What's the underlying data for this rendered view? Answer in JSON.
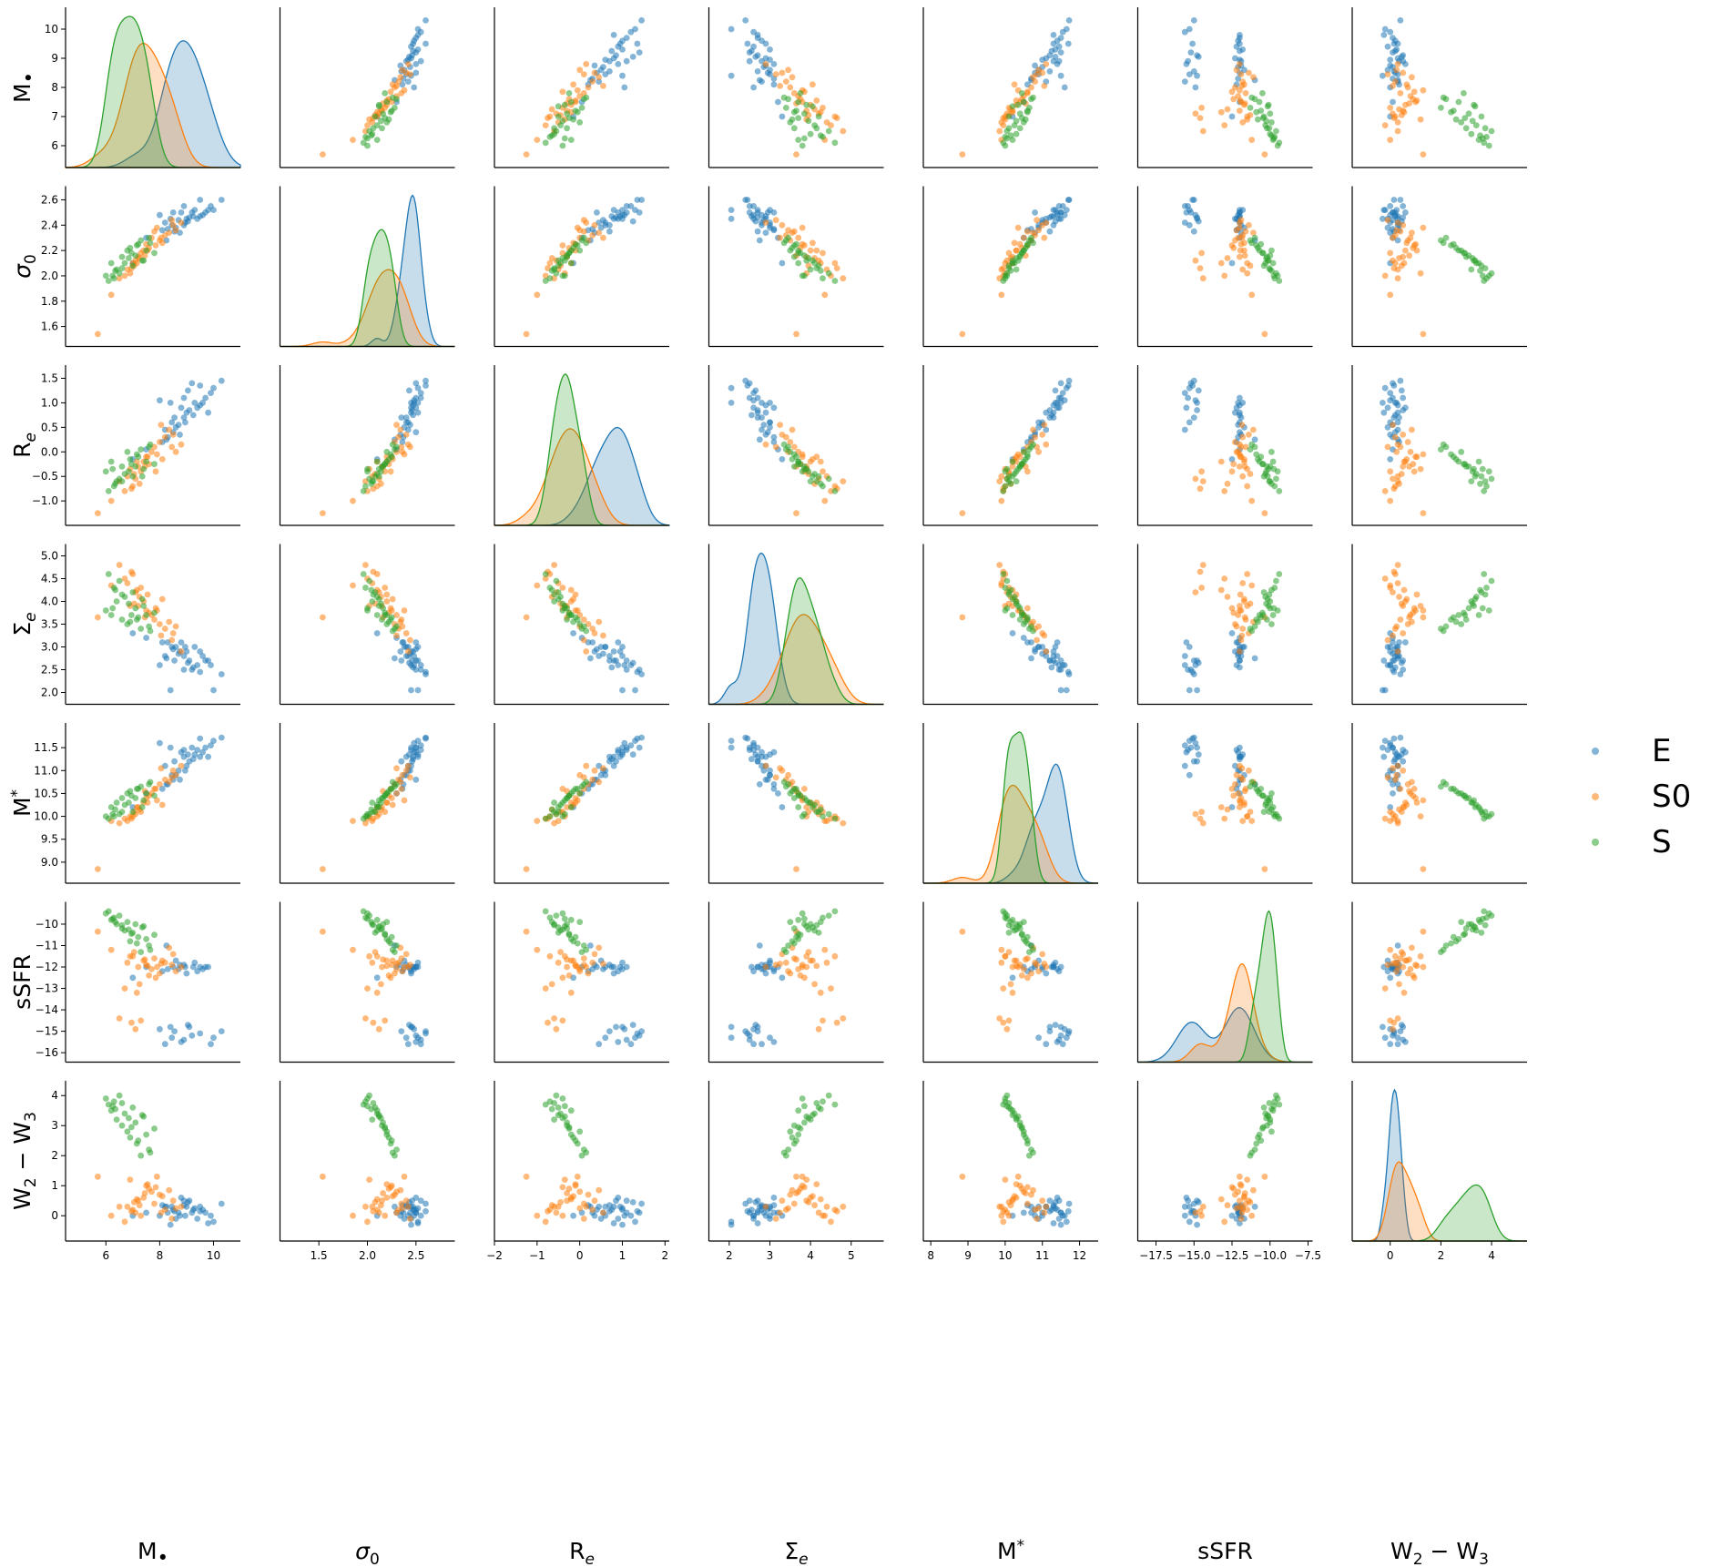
{
  "chart_data": {
    "type": "scatter",
    "title": "",
    "plot_kind": "pairplot (scatter off-diagonal, KDE density on diagonal)",
    "variables": [
      {
        "key": "mbh",
        "label": "M•",
        "lim": [
          4.5,
          11
        ],
        "ticks": [
          6,
          8,
          10
        ]
      },
      {
        "key": "sigma0",
        "label": "σ0",
        "lim": [
          1.1,
          2.9
        ],
        "ticks": [
          1.5,
          2.0,
          2.5
        ]
      },
      {
        "key": "re",
        "label": "Re",
        "lim": [
          -2.0,
          2.1
        ],
        "ticks": [
          -2,
          -1,
          0,
          1,
          2
        ]
      },
      {
        "key": "sigma_e",
        "label": "Σe",
        "lim": [
          1.5,
          5.8
        ],
        "ticks": [
          2,
          3,
          4,
          5
        ]
      },
      {
        "key": "mstar",
        "label": "M*",
        "lim": [
          7.8,
          12.5
        ],
        "ticks": [
          8,
          9,
          10,
          11,
          12
        ]
      },
      {
        "key": "ssfr",
        "label": "sSFR",
        "lim": [
          -18.7,
          -7.2
        ],
        "ticks": [
          -17.5,
          -15.0,
          -12.5,
          -10.0,
          -7.5
        ]
      },
      {
        "key": "w2w3",
        "label": "W2 − W3",
        "lim": [
          -1.5,
          5.4
        ],
        "ticks": [
          0,
          2,
          4
        ]
      }
    ],
    "tick_labels": {
      "mbh": [
        "6",
        "8",
        "10"
      ],
      "sigma0": [
        "1.5",
        "2.0",
        "2.5"
      ],
      "re": [
        "−2",
        "−1",
        "0",
        "1",
        "2"
      ],
      "sigma_e": [
        "2",
        "3",
        "4",
        "5"
      ],
      "mstar": [
        "8",
        "9",
        "10",
        "11",
        "12"
      ],
      "ssfr": [
        "−17.5",
        "−15.0",
        "−12.5",
        "−10.0",
        "−7.5"
      ],
      "w2w3": [
        "0",
        "2",
        "4"
      ]
    },
    "row_limits": {
      "mbh": [
        5.5,
        10.5
      ],
      "sigma0": [
        1.5,
        2.65
      ],
      "re": [
        -1.35,
        1.62
      ],
      "sigma_e": [
        1.9,
        5.1
      ],
      "mstar": [
        8.7,
        11.88
      ],
      "ssfr": [
        -16.1,
        -9.3
      ],
      "w2w3": [
        -0.6,
        4.25
      ]
    },
    "row_ticks": {
      "mbh": [
        6,
        7,
        8,
        9,
        10
      ],
      "sigma0": [
        1.6,
        1.8,
        2.0,
        2.2,
        2.4,
        2.6
      ],
      "re": [
        -1.0,
        -0.5,
        0.0,
        0.5,
        1.0,
        1.5
      ],
      "sigma_e": [
        2.0,
        2.5,
        3.0,
        3.5,
        4.0,
        4.5,
        5.0
      ],
      "mstar": [
        9.0,
        9.5,
        10.0,
        10.5,
        11.0,
        11.5
      ],
      "ssfr": [
        -16,
        -15,
        -14,
        -13,
        -12,
        -11,
        -10
      ],
      "w2w3": [
        0,
        1,
        2,
        3,
        4
      ]
    },
    "row_tick_labels": {
      "mbh": [
        "6",
        "7",
        "8",
        "9",
        "10"
      ],
      "sigma0": [
        "1.6",
        "1.8",
        "2.0",
        "2.2",
        "2.4",
        "2.6"
      ],
      "re": [
        "−1.0",
        "−0.5",
        "0.0",
        "0.5",
        "1.0",
        "1.5"
      ],
      "sigma_e": [
        "2.0",
        "2.5",
        "3.0",
        "3.5",
        "4.0",
        "4.5",
        "5.0"
      ],
      "mstar": [
        "9.0",
        "9.5",
        "10.0",
        "10.5",
        "11.0",
        "11.5"
      ],
      "ssfr": [
        "−16",
        "−15",
        "−14",
        "−13",
        "−12",
        "−11",
        "−10"
      ],
      "w2w3": [
        "0",
        "1",
        "2",
        "3",
        "4"
      ]
    },
    "series": [
      {
        "name": "E",
        "color": "#1f77b4",
        "points": [
          [
            10.3,
            2.6,
            1.45,
            2.4,
            11.72,
            -15.0,
            0.4
          ],
          [
            10.0,
            2.52,
            1.3,
            2.05,
            11.65,
            -15.3,
            -0.2
          ],
          [
            9.9,
            2.55,
            1.2,
            2.6,
            11.55,
            -15.6,
            0.0
          ],
          [
            9.7,
            2.5,
            1.1,
            2.7,
            11.5,
            -12.0,
            0.1
          ],
          [
            9.6,
            2.48,
            1.0,
            2.8,
            11.4,
            -12.1,
            0.2
          ],
          [
            9.5,
            2.47,
            0.95,
            2.9,
            11.3,
            -12.0,
            0.3
          ],
          [
            9.4,
            2.45,
            0.9,
            2.6,
            11.45,
            -12.2,
            -0.1
          ],
          [
            9.3,
            2.52,
            1.0,
            3.0,
            11.35,
            -11.8,
            0.25
          ],
          [
            9.2,
            2.5,
            1.4,
            2.5,
            11.5,
            -15.2,
            0.1
          ],
          [
            9.1,
            2.46,
            0.85,
            2.7,
            11.2,
            -14.8,
            0.5
          ],
          [
            9.0,
            2.45,
            0.8,
            2.9,
            11.1,
            -12.3,
            0.3
          ],
          [
            8.95,
            2.42,
            0.6,
            3.0,
            11.0,
            -12.0,
            0.0
          ],
          [
            8.9,
            2.4,
            0.7,
            2.8,
            11.3,
            -11.9,
            0.35
          ],
          [
            8.8,
            2.5,
            0.9,
            3.1,
            11.4,
            -15.5,
            0.6
          ],
          [
            8.7,
            2.44,
            0.55,
            2.85,
            11.0,
            -12.1,
            0.1
          ],
          [
            8.6,
            2.38,
            0.5,
            3.0,
            10.9,
            -11.7,
            -0.1
          ],
          [
            8.55,
            2.35,
            0.7,
            2.7,
            11.2,
            -15.0,
            0.15
          ],
          [
            8.5,
            2.5,
            0.4,
            2.95,
            10.8,
            -12.0,
            0.2
          ],
          [
            8.4,
            2.45,
            1.0,
            2.05,
            11.5,
            -14.8,
            -0.3
          ],
          [
            8.3,
            2.37,
            0.3,
            3.1,
            10.7,
            -12.1,
            0.1
          ],
          [
            8.2,
            2.42,
            0.45,
            2.8,
            11.1,
            -15.6,
            0.3
          ],
          [
            8.0,
            2.48,
            1.05,
            2.6,
            11.6,
            -14.9,
            0.0
          ],
          [
            8.9,
            2.55,
            1.1,
            2.5,
            11.45,
            -15.4,
            0.5
          ],
          [
            9.8,
            2.52,
            0.8,
            2.7,
            11.3,
            -12.0,
            -0.25
          ],
          [
            9.5,
            2.6,
            1.35,
            2.45,
            11.7,
            -15.1,
            0.15
          ],
          [
            8.1,
            2.36,
            0.2,
            3.1,
            10.6,
            -12.2,
            0.35
          ],
          [
            8.75,
            2.34,
            0.35,
            2.9,
            10.8,
            -11.9,
            0.0
          ],
          [
            9.25,
            2.47,
            0.75,
            2.55,
            11.25,
            -12.0,
            0.2
          ],
          [
            8.45,
            2.4,
            0.6,
            3.0,
            10.9,
            -15.3,
            0.3
          ],
          [
            9.05,
            2.43,
            1.25,
            2.65,
            11.35,
            -14.7,
            0.45
          ],
          [
            7.5,
            2.3,
            0.05,
            3.2,
            10.5,
            -12.0,
            0.1
          ],
          [
            7.0,
            2.1,
            -0.15,
            3.3,
            10.2,
            -12.5,
            0.0
          ],
          [
            8.25,
            2.28,
            0.25,
            2.75,
            10.7,
            -11.0,
            0.3
          ]
        ]
      },
      {
        "name": "S0",
        "color": "#ff7f0e",
        "points": [
          [
            5.7,
            1.54,
            -1.25,
            3.65,
            8.85,
            -10.35,
            1.3
          ],
          [
            6.8,
            2.05,
            -0.5,
            4.4,
            9.9,
            -11.8,
            0.3
          ],
          [
            7.0,
            2.1,
            -0.7,
            4.6,
            10.0,
            -11.5,
            0.2
          ],
          [
            7.2,
            2.15,
            -0.3,
            3.9,
            10.2,
            -12.0,
            0.5
          ],
          [
            7.4,
            2.2,
            -0.2,
            4.0,
            10.3,
            -11.7,
            0.6
          ],
          [
            7.5,
            2.25,
            -0.1,
            3.8,
            10.4,
            -11.9,
            1.0
          ],
          [
            7.7,
            2.3,
            0.0,
            3.7,
            10.5,
            -12.1,
            0.8
          ],
          [
            7.8,
            2.35,
            0.1,
            3.6,
            10.6,
            -11.6,
            0.4
          ],
          [
            8.0,
            2.28,
            0.2,
            3.5,
            10.7,
            -12.3,
            0.7
          ],
          [
            8.2,
            2.32,
            0.3,
            3.4,
            10.8,
            -11.8,
            0.2
          ],
          [
            6.5,
            1.98,
            -0.6,
            4.8,
            9.85,
            -14.4,
            0.3
          ],
          [
            7.1,
            2.12,
            -0.55,
            4.2,
            10.05,
            -14.9,
            0.1
          ],
          [
            7.3,
            2.18,
            -0.4,
            4.3,
            10.1,
            -14.5,
            0.0
          ],
          [
            6.9,
            2.02,
            -0.35,
            3.9,
            10.0,
            -11.5,
            1.2
          ],
          [
            7.6,
            2.22,
            -0.25,
            3.75,
            10.45,
            -12.4,
            0.9
          ],
          [
            8.5,
            2.4,
            0.35,
            3.3,
            11.0,
            -11.4,
            0.5
          ],
          [
            7.9,
            2.38,
            -0.05,
            3.8,
            10.35,
            -12.0,
            1.3
          ],
          [
            8.1,
            2.26,
            -0.15,
            4.05,
            10.25,
            -11.7,
            0.65
          ],
          [
            6.7,
            2.0,
            -0.8,
            4.5,
            9.95,
            -13.0,
            -0.2
          ],
          [
            7.25,
            2.14,
            -0.65,
            4.1,
            10.15,
            -12.8,
            0.35
          ],
          [
            8.8,
            2.42,
            0.15,
            2.9,
            11.1,
            -12.0,
            0.3
          ],
          [
            6.2,
            1.85,
            -1.0,
            4.35,
            9.9,
            -11.2,
            0.0
          ],
          [
            7.05,
            2.08,
            -0.45,
            3.95,
            10.1,
            -11.3,
            0.45
          ],
          [
            8.35,
            2.34,
            0.45,
            3.55,
            10.75,
            -11.1,
            0.85
          ],
          [
            7.55,
            2.2,
            -0.1,
            4.15,
            10.3,
            -11.95,
            1.05
          ],
          [
            6.95,
            2.06,
            -0.75,
            4.65,
            9.95,
            -14.6,
            0.15
          ],
          [
            8.6,
            2.36,
            0.0,
            3.45,
            10.9,
            -12.2,
            0.25
          ],
          [
            7.45,
            2.16,
            -0.3,
            3.65,
            10.55,
            -11.65,
            0.75
          ],
          [
            8.05,
            2.3,
            0.55,
            3.25,
            11.05,
            -11.85,
            0.1
          ],
          [
            7.15,
            2.1,
            -0.2,
            4.25,
            10.2,
            -13.2,
            0.55
          ],
          [
            8.45,
            2.44,
            0.1,
            3.15,
            10.85,
            -11.9,
            -0.1
          ],
          [
            7.85,
            2.24,
            -0.4,
            3.85,
            10.6,
            -12.5,
            0.95
          ]
        ]
      },
      {
        "name": "S",
        "color": "#2ca02c",
        "points": [
          [
            6.0,
            2.0,
            -0.4,
            3.8,
            10.0,
            -9.5,
            3.9
          ],
          [
            6.2,
            2.1,
            -0.2,
            3.7,
            10.2,
            -9.8,
            3.5
          ],
          [
            6.4,
            2.05,
            -0.6,
            4.0,
            10.3,
            -10.0,
            3.2
          ],
          [
            6.6,
            2.15,
            -0.3,
            3.6,
            10.4,
            -10.2,
            3.0
          ],
          [
            6.8,
            2.2,
            0.0,
            3.5,
            10.5,
            -9.9,
            2.8
          ],
          [
            7.0,
            2.08,
            -0.5,
            4.2,
            10.1,
            -10.4,
            3.6
          ],
          [
            7.2,
            2.25,
            -0.1,
            3.65,
            10.6,
            -10.6,
            2.5
          ],
          [
            7.4,
            2.12,
            -0.35,
            3.9,
            10.35,
            -10.1,
            3.3
          ],
          [
            7.6,
            2.3,
            0.1,
            3.45,
            10.7,
            -11.0,
            2.2
          ],
          [
            7.8,
            2.18,
            -0.25,
            3.75,
            10.45,
            -10.5,
            2.9
          ],
          [
            6.3,
            1.98,
            -0.7,
            4.3,
            10.0,
            -9.7,
            3.8
          ],
          [
            6.5,
            2.02,
            -0.55,
            4.45,
            10.05,
            -9.6,
            4.0
          ],
          [
            6.7,
            2.1,
            -0.45,
            4.1,
            10.25,
            -10.3,
            3.4
          ],
          [
            6.9,
            2.22,
            -0.15,
            3.55,
            10.55,
            -10.8,
            2.6
          ],
          [
            7.1,
            2.16,
            -0.3,
            3.85,
            10.4,
            -10.0,
            3.1
          ],
          [
            7.3,
            2.28,
            0.05,
            3.4,
            10.65,
            -11.3,
            2.0
          ],
          [
            7.5,
            2.2,
            -0.2,
            3.7,
            10.5,
            -10.7,
            2.7
          ],
          [
            6.1,
            1.96,
            -0.8,
            4.6,
            9.95,
            -9.4,
            3.7
          ],
          [
            6.35,
            2.04,
            -0.65,
            4.25,
            10.15,
            -9.9,
            3.55
          ],
          [
            6.85,
            2.14,
            -0.4,
            3.95,
            10.3,
            -10.25,
            3.25
          ],
          [
            7.15,
            2.24,
            -0.05,
            3.6,
            10.6,
            -10.9,
            2.4
          ],
          [
            7.35,
            2.12,
            -0.5,
            4.05,
            10.2,
            -10.15,
            3.35
          ],
          [
            6.6,
            2.06,
            -0.6,
            4.15,
            10.1,
            -10.05,
            3.75
          ],
          [
            7.65,
            2.26,
            0.15,
            3.35,
            10.75,
            -11.2,
            2.1
          ],
          [
            6.25,
            2.0,
            -0.35,
            3.85,
            10.05,
            -9.75,
            3.65
          ],
          [
            6.95,
            2.18,
            -0.25,
            3.7,
            10.45,
            -10.45,
            2.95
          ]
        ]
      }
    ],
    "legend": {
      "position": "right",
      "entries": [
        "E",
        "S0",
        "S"
      ]
    }
  }
}
